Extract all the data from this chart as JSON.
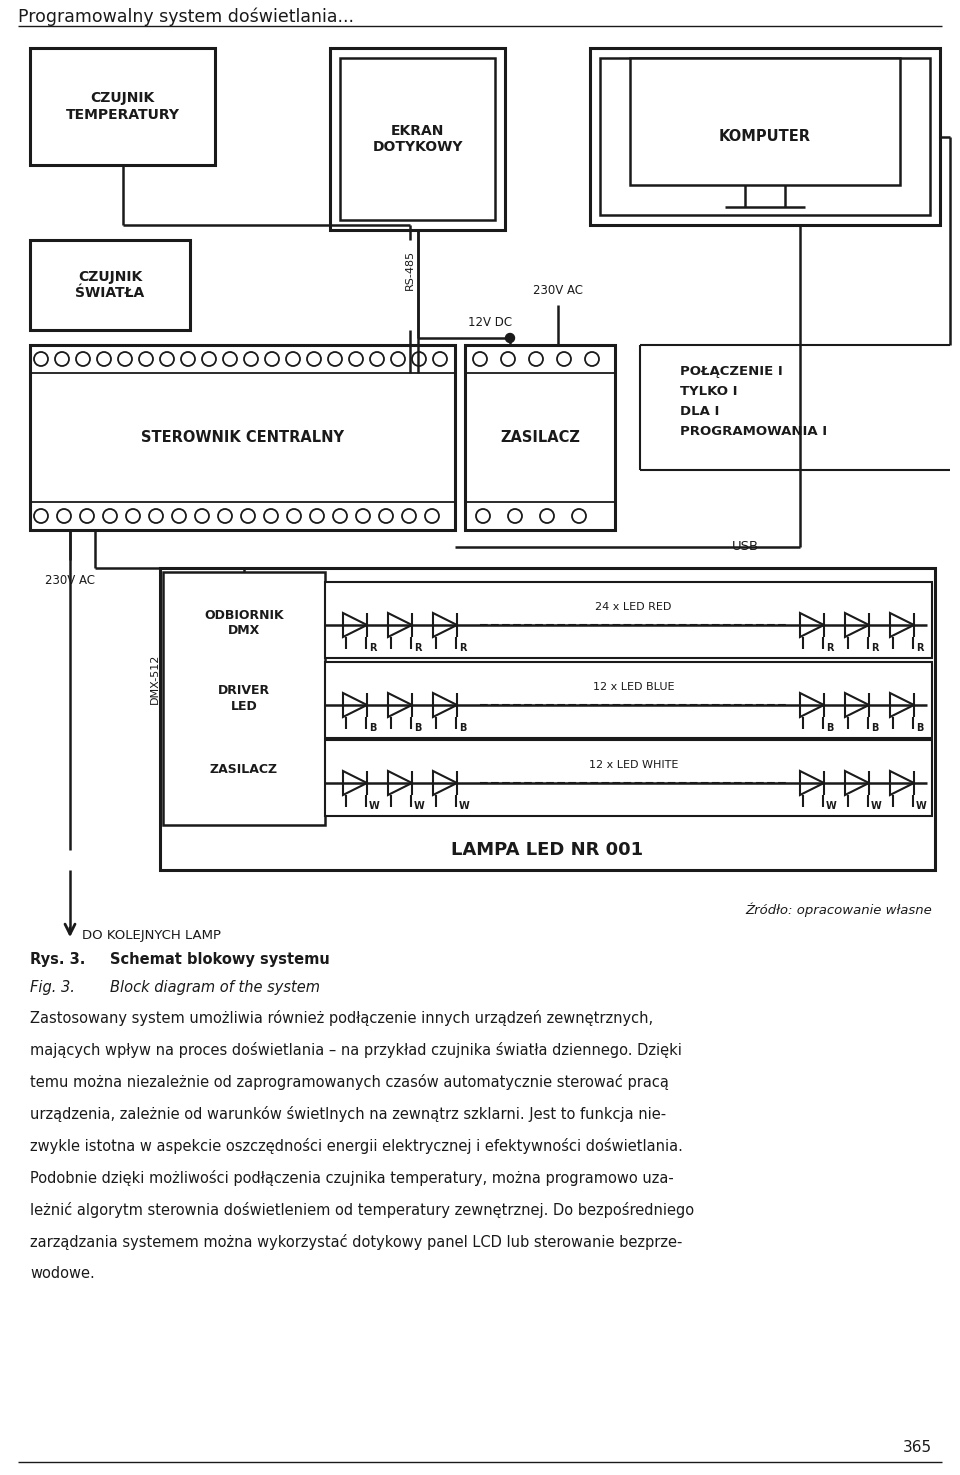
{
  "title": "Programowalny system doświetlania...",
  "bg_color": "#ffffff",
  "text_color": "#1a1a1a",
  "caption_line1_bold": "Rys. 3.",
  "caption_line1_rest": "Schemat blokowy systemu",
  "caption_line2_label": "Fig. 3.",
  "caption_line2_rest": "Block diagram of the system",
  "body_text": "Zastosowany system umożliwia również podłączenie innych urządzeń zewnętrznych,\nmających wpływ na proces doświetlania – na przykład czujnika światła dziennego. Dzięki\ntemu można niezależnie od zaprogramowanych czasów automatycznie sterować pracą\nurządzenia, zależnie od warunków świetlnych na zewnątrz szklarni. Jest to funkcja nie-\nzwykle istotna w aspekcie oszczędności energii elektrycznej i efektywności doświetlania.\nPodobnie dzięki możliwości podłączenia czujnika temperatury, można programowo uza-\nleżnić algorytm sterownia doświetleniem od temperatury zewnętrznej. Do bezpośredniego\nzarządzania systemem można wykorzystać dotykowy panel LCD lub sterowanie bezprze-\nwodowe.",
  "source_text": "Źródło: opracowanie własne",
  "page_number": "365"
}
